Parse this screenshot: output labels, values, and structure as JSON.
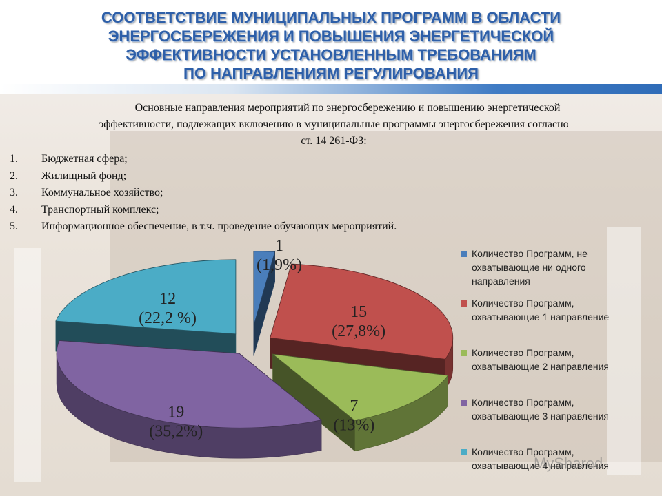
{
  "title_lines": [
    "СООТВЕТСТВИЕ МУНИЦИПАЛЬНЫХ ПРОГРАММ В ОБЛАСТИ",
    "ЭНЕРГОСБЕРЕЖЕНИЯ И ПОВЫШЕНИЯ ЭНЕРГЕТИЧЕСКОЙ",
    "ЭФФЕКТИВНОСТИ УСТАНОВЛЕННЫМ ТРЕБОВАНИЯМ",
    "ПО НАПРАВЛЕНИЯМ РЕГУЛИРОВАНИЯ"
  ],
  "intro": {
    "line1": "Основные направления мероприятий по энергосбережению и повышению энергетической",
    "line2": "эффективности, подлежащих включению в муниципальные программы энергосбережения согласно",
    "line3": "ст. 14 261-ФЗ:"
  },
  "directions": [
    {
      "num": "1.",
      "text": "Бюджетная сфера;"
    },
    {
      "num": "2.",
      "text": "Жилищный фонд;"
    },
    {
      "num": "3.",
      "text": "Коммунальное хозяйство;"
    },
    {
      "num": "4.",
      "text": "Транспортный комплекс;"
    },
    {
      "num": "5.",
      "text": "Информационное обеспечение, в т.ч. проведение обучающих мероприятий."
    }
  ],
  "chart_data": {
    "type": "pie",
    "style": "3d-exploded",
    "slices": [
      {
        "label_lines": [
          "Количество Программ,  не",
          "охватывающие ни одного",
          "направления"
        ],
        "value": 1,
        "percent_label": "(1,9%)",
        "color": "#4a7ebb"
      },
      {
        "label_lines": [
          "Количество Программ,",
          "охватывающие 1 направление"
        ],
        "value": 15,
        "percent_label": "(27,8%)",
        "color": "#c0504d"
      },
      {
        "label_lines": [
          "Количество Программ,",
          "охватывающие 2 направления"
        ],
        "value": 7,
        "percent_label": "(13%)",
        "color": "#9bbb59"
      },
      {
        "label_lines": [
          "Количество Программ,",
          "охватывающие 3 направления"
        ],
        "value": 19,
        "percent_label": "(35,2%)",
        "color": "#8064a2"
      },
      {
        "label_lines": [
          "Количество Программ,",
          "охватывающие 4 направления"
        ],
        "value": 12,
        "percent_label": "(22,2 %)",
        "color": "#4bacc6"
      }
    ],
    "legend_position": "right"
  },
  "watermark": "MyShared"
}
